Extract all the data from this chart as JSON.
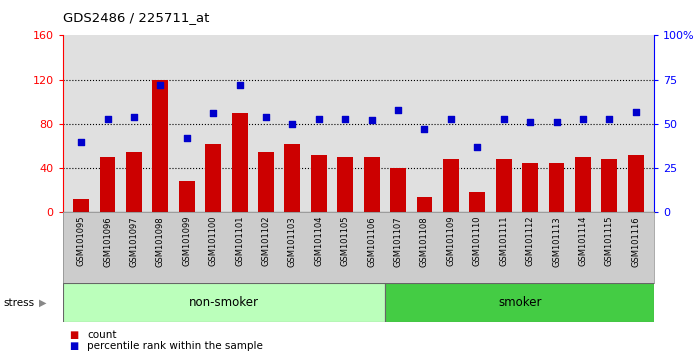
{
  "title": "GDS2486 / 225711_at",
  "categories": [
    "GSM101095",
    "GSM101096",
    "GSM101097",
    "GSM101098",
    "GSM101099",
    "GSM101100",
    "GSM101101",
    "GSM101102",
    "GSM101103",
    "GSM101104",
    "GSM101105",
    "GSM101106",
    "GSM101107",
    "GSM101108",
    "GSM101109",
    "GSM101110",
    "GSM101111",
    "GSM101112",
    "GSM101113",
    "GSM101114",
    "GSM101115",
    "GSM101116"
  ],
  "bar_values": [
    12,
    50,
    55,
    120,
    28,
    62,
    90,
    55,
    62,
    52,
    50,
    50,
    40,
    14,
    48,
    18,
    48,
    45,
    45,
    50,
    48,
    52
  ],
  "percentile_values": [
    40,
    53,
    54,
    72,
    42,
    56,
    72,
    54,
    50,
    53,
    53,
    52,
    58,
    47,
    53,
    37,
    53,
    51,
    51,
    53,
    53,
    57
  ],
  "bar_color": "#cc0000",
  "percentile_color": "#0000cc",
  "left_ylim": [
    0,
    160
  ],
  "right_ylim": [
    0,
    100
  ],
  "left_yticks": [
    0,
    40,
    80,
    120,
    160
  ],
  "right_yticks": [
    0,
    25,
    50,
    75,
    100
  ],
  "right_yticklabels": [
    "0",
    "25",
    "50",
    "75",
    "100%"
  ],
  "grid_values": [
    40,
    80,
    120
  ],
  "non_smoker_count": 12,
  "smoker_count": 10,
  "group_label_non_smoker": "non-smoker",
  "group_label_smoker": "smoker",
  "stress_label": "stress",
  "legend_bar_label": "count",
  "legend_percentile_label": "percentile rank within the sample",
  "background_color": "#ffffff",
  "plot_bg_color": "#e0e0e0",
  "non_smoker_color": "#bbffbb",
  "smoker_color": "#44cc44",
  "tick_bg_color": "#cccccc"
}
